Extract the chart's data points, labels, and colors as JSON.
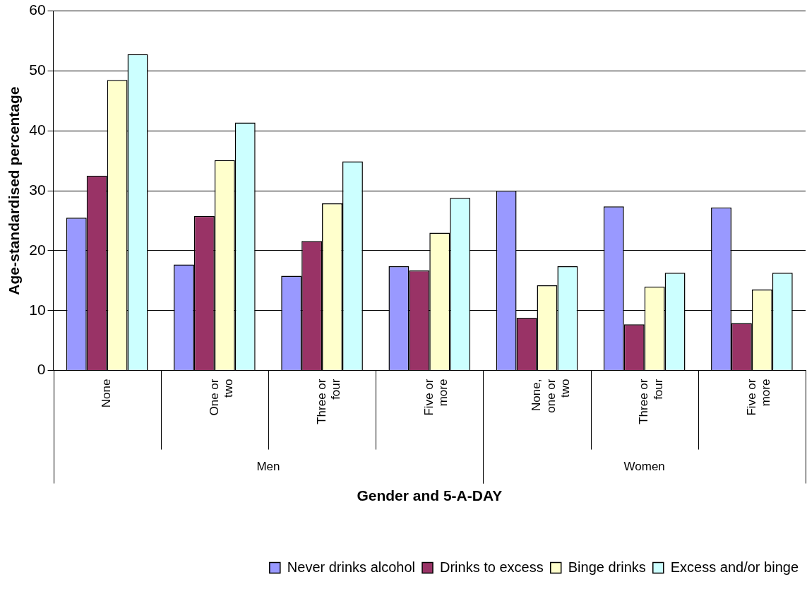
{
  "chart_data": {
    "type": "bar",
    "xlabel": "Gender and 5-A-DAY",
    "ylabel": "Age-standardised percentage",
    "categories": [
      "None",
      "One or two",
      "Three or four",
      "Five or more",
      "None, one or two",
      "Three or four",
      "Five or more"
    ],
    "series": [
      {
        "name": "Never drinks alcohol",
        "color": "#9999ff",
        "values": [
          25.5,
          17.7,
          15.8,
          17.4,
          30,
          27.4,
          27.2
        ]
      },
      {
        "name": "Drinks to excess",
        "color": "#993366",
        "values": [
          32.5,
          25.8,
          21.6,
          16.7,
          8.8,
          7.7,
          7.9
        ]
      },
      {
        "name": "Binge drinks",
        "color": "#ffffcc",
        "values": [
          48.5,
          35.1,
          27.9,
          23,
          14.2,
          14,
          13.5
        ]
      },
      {
        "name": "Excess and/or binge",
        "color": "#ccffff",
        "values": [
          52.8,
          41.4,
          34.9,
          28.8,
          17.4,
          16.3,
          16.3
        ]
      }
    ],
    "annotations": [
      "Men",
      "Women"
    ],
    "ylim": [
      0,
      60
    ],
    "yticks": [
      0,
      10,
      20,
      30,
      40,
      50,
      60
    ],
    "grid": "y",
    "legend": "bottom"
  }
}
